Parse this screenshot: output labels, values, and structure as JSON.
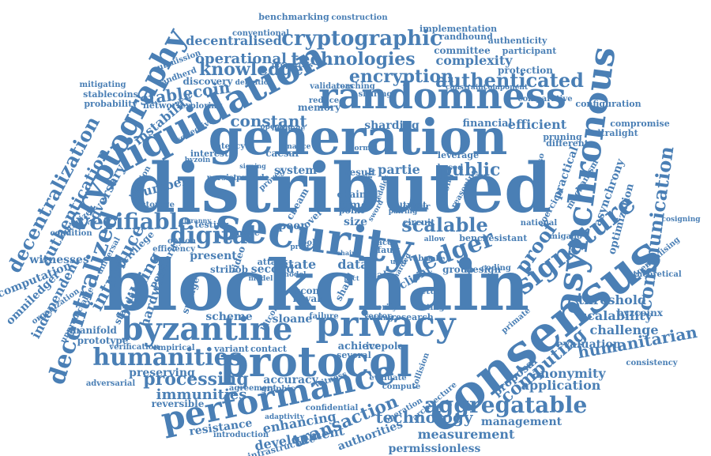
{
  "colors": {
    "word": "#4a7fb5",
    "background": "#ffffff"
  },
  "words": [
    "blockchain",
    "distributed",
    "consensus",
    "generation",
    "security",
    "protocol",
    "randomness",
    "liquidation",
    "privacy",
    "performance",
    "byzantine",
    "asynchronous",
    "cryptography",
    "humanities",
    "signature",
    "cryptographic",
    "authenticated",
    "technologies",
    "ledger",
    "verifiable",
    "digital",
    "decentralized",
    "decentralization",
    "scalable",
    "proof",
    "aggregatable",
    "communication",
    "encryption",
    "knowledge",
    "humanitarian",
    "transaction",
    "processing",
    "immunities",
    "technology",
    "computing",
    "public",
    "stablecoin",
    "authentication",
    "introduce",
    "building",
    "constant",
    "operational",
    "decentralised",
    "complexity",
    "computation",
    "efficient",
    "sharding",
    "threshold",
    "scalability",
    "challenge",
    "application",
    "anonymity",
    "evaluation",
    "measurement",
    "management",
    "development",
    "enhancing",
    "resistance",
    "permissionless",
    "authorities",
    "adversary",
    "instability",
    "independent",
    "omniledger",
    "witnesses",
    "manifold",
    "prototype",
    "reversible",
    "preserving",
    "accuracy",
    "number",
    "hardware",
    "standard",
    "popularity",
    "privilege",
    "scheme",
    "achieve",
    "research",
    "variant",
    "contact",
    "sloane",
    "data",
    "state",
    "scale",
    "client",
    "group",
    "design",
    "setup",
    "second",
    "attack",
    "present",
    "testing",
    "image",
    "peer",
    "time",
    "size",
    "point",
    "circuit",
    "leader",
    "bench",
    "resistant",
    "mechanism",
    "coercion",
    "optimization",
    "asynchrony",
    "practical",
    "different",
    "compromise",
    "ultralight",
    "configuration",
    "comparative",
    "protection",
    "participant",
    "authenticity",
    "randhound",
    "committee",
    "implementation",
    "construction",
    "benchmarking",
    "conventional",
    "memory",
    "reduce",
    "reaching",
    "sharing",
    "validators",
    "discovery",
    "exploring",
    "randherd",
    "network",
    "probability",
    "stablecoins",
    "mitigating",
    "submission",
    "optimized",
    "storage",
    "condition",
    "organization",
    "unpredictable",
    "universal",
    "location",
    "interest",
    "latency",
    "collective",
    "option",
    "efficiency",
    "sponge",
    "video",
    "stribob",
    "ascon",
    "keyak",
    "shard",
    "vector",
    "failure",
    "bitcoin",
    "icepole",
    "graphic",
    "empirical",
    "verification",
    "adversarial",
    "agreement",
    "caesar",
    "system",
    "result",
    "partie",
    "chain",
    "cbeam",
    "novel",
    "several",
    "financial",
    "pruning",
    "leverage",
    "based",
    "strong",
    "reasoning",
    "calypso",
    "national",
    "migado",
    "byzcoinx",
    "cosigning",
    "decentralising",
    "consistency",
    "theoretical",
    "coding",
    "proposal",
    "primate",
    "verify",
    "voting",
    "compute",
    "evaluate",
    "witness",
    "collision",
    "architecture",
    "operation",
    "confidential",
    "adaptivity",
    "introduction",
    "infrastructure",
    "trust",
    "finance",
    "heritage",
    "opening",
    "persistent",
    "provide",
    "prover",
    "signing",
    "byzoin",
    "definition",
    "properties",
    "tyranny",
    "textile",
    "pairing",
    "normal",
    "constraint",
    "component",
    "tool",
    "prior",
    "model",
    "stake",
    "allow",
    "ace",
    "fault",
    "sharded",
    "teddies",
    "sword",
    "model",
    "user",
    "setting",
    "chairs",
    "pact",
    "vaba"
  ]
}
